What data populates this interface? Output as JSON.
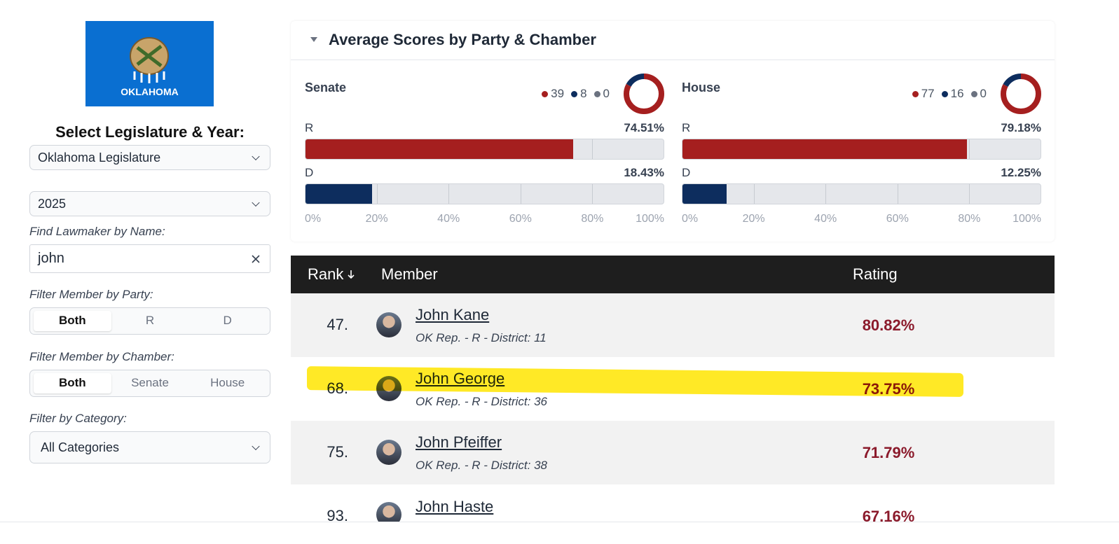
{
  "sidebar": {
    "flag_label": "OKLAHOMA",
    "select_title": "Select Legislature & Year:",
    "legislature": "Oklahoma Legislature",
    "year": "2025",
    "find_label": "Find Lawmaker by Name:",
    "search_value": "john",
    "party_label": "Filter Member by Party:",
    "party_options": [
      "Both",
      "R",
      "D"
    ],
    "chamber_label": "Filter Member by Chamber:",
    "chamber_options": [
      "Both",
      "Senate",
      "House"
    ],
    "category_label": "Filter by Category:",
    "category": "All Categories"
  },
  "scores": {
    "title": "Average Scores by Party & Chamber",
    "ticks": [
      {
        "value": 0,
        "label": "0%"
      },
      {
        "value": 20,
        "label": "20%"
      },
      {
        "value": 40,
        "label": "40%"
      },
      {
        "value": 60,
        "label": "60%"
      },
      {
        "value": 80,
        "label": "80%"
      },
      {
        "value": 100,
        "label": "100%"
      }
    ],
    "colors": [
      "#a51f1f",
      "#0d2d5e",
      "#6b7280"
    ],
    "chambers": [
      {
        "name": "Senate",
        "counts": [
          39,
          8,
          0
        ],
        "bars": [
          {
            "party": "R",
            "score": 74.51,
            "label": "74.51%"
          },
          {
            "party": "D",
            "score": 18.43,
            "label": "18.43%"
          }
        ]
      },
      {
        "name": "House",
        "counts": [
          77,
          16,
          0
        ],
        "bars": [
          {
            "party": "R",
            "score": 79.18,
            "label": "79.18%"
          },
          {
            "party": "D",
            "score": 12.25,
            "label": "12.25%"
          }
        ]
      }
    ]
  },
  "table": {
    "headers": [
      "Rank",
      "Member",
      "Rating"
    ],
    "rows": [
      {
        "rank": "47.",
        "name": "John Kane",
        "detail": "OK Rep. - R - District: 11",
        "rating": "80.82%"
      },
      {
        "rank": "68.",
        "name": "John George",
        "detail": "OK Rep. - R - District: 36",
        "rating": "73.75%"
      },
      {
        "rank": "75.",
        "name": "John Pfeiffer",
        "detail": "OK Rep. - R - District: 38",
        "rating": "71.79%"
      },
      {
        "rank": "93.",
        "name": "John Haste",
        "detail": null,
        "rating": "67.16%"
      }
    ]
  }
}
